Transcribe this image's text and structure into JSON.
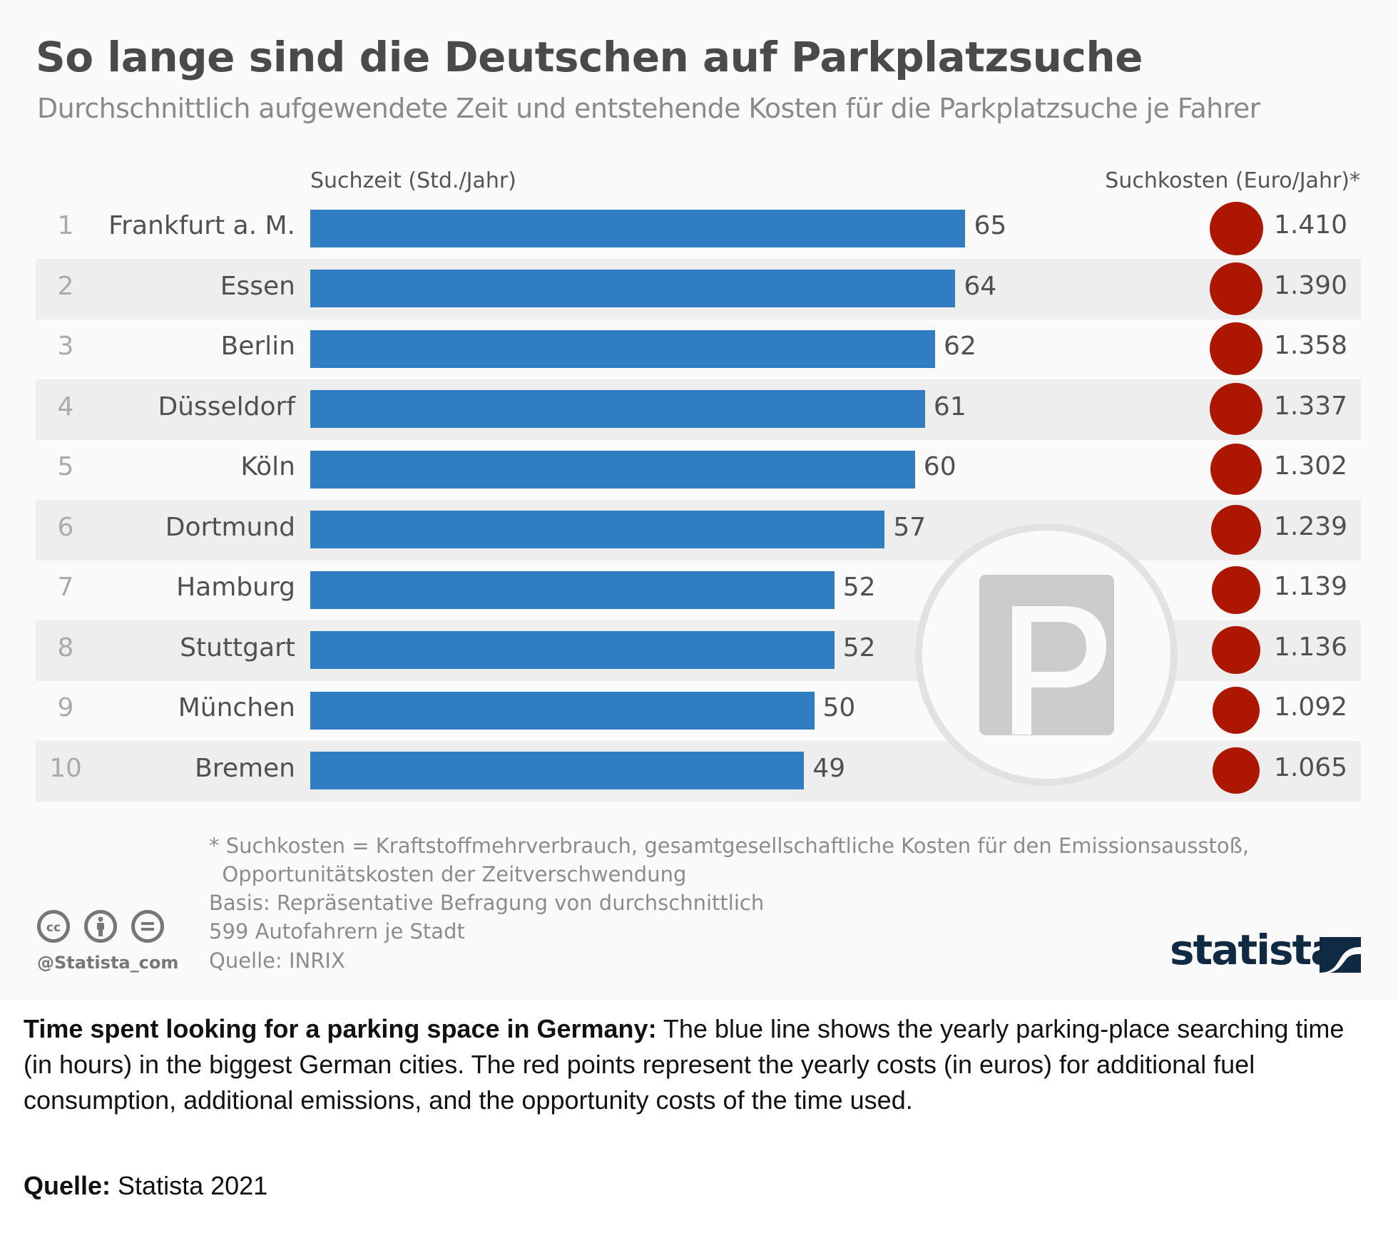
{
  "header": {
    "title": "So lange sind die Deutschen auf Parkplatzsuche",
    "subtitle": "Durchschnittlich aufgewendete Zeit und entstehende Kosten für die Parkplatzsuche je Fahrer"
  },
  "chart_data": {
    "type": "bar",
    "title": "So lange sind die Deutschen auf Parkplatzsuche",
    "subtitle": "Durchschnittlich aufgewendete Zeit und entstehende Kosten für die Parkplatzsuche je Fahrer",
    "orientation": "horizontal",
    "categories": [
      "Frankfurt a. M.",
      "Essen",
      "Berlin",
      "Düsseldorf",
      "Köln",
      "Dortmund",
      "Hamburg",
      "Stuttgart",
      "München",
      "Bremen"
    ],
    "ranks": [
      "1",
      "2",
      "3",
      "4",
      "5",
      "6",
      "7",
      "8",
      "9",
      "10"
    ],
    "series": [
      {
        "name": "Suchzeit (Std./Jahr)",
        "mark": "bar",
        "color": "#317dc2",
        "values": [
          65,
          64,
          62,
          61,
          60,
          57,
          52,
          52,
          50,
          49
        ],
        "labels": [
          "65",
          "64",
          "62",
          "61",
          "60",
          "57",
          "52",
          "52",
          "50",
          "49"
        ]
      },
      {
        "name": "Suchkosten (Euro/Jahr)*",
        "mark": "bubble",
        "color": "#ad1601",
        "values": [
          1410,
          1390,
          1358,
          1337,
          1302,
          1239,
          1139,
          1136,
          1092,
          1065
        ],
        "labels": [
          "1.410",
          "1.390",
          "1.358",
          "1.337",
          "1.302",
          "1.239",
          "1.139",
          "1.136",
          "1.092",
          "1.065"
        ]
      }
    ],
    "xlabel": "Suchzeit (Std./Jahr)",
    "ylabel": "",
    "xlim": [
      0,
      65
    ],
    "grid": false,
    "legend": "column headers above chart"
  },
  "columns": {
    "time_header": "Suchzeit (Std./Jahr)",
    "cost_header": "Suchkosten (Euro/Jahr)*"
  },
  "footnotes": {
    "text": "* Suchkosten = Kraftstoffmehrverbrauch, gesamtgesellschaftliche Kosten für den Emissionsausstoß,\n  Opportunitätskosten der Zeitverschwendung\nBasis: Repräsentative Befragung von durchschnittlich\n599 Autofahrern je Stadt",
    "source": "Quelle: INRIX"
  },
  "branding": {
    "handle": "@Statista_com",
    "logo_text": "statista",
    "license_icons": [
      "cc-icon",
      "attribution-icon",
      "no-derivatives-icon"
    ]
  },
  "caption": {
    "bold": "Time spent looking for a parking space in Germany:",
    "text": " The blue line shows the yearly parking-place searching time (in hours) in the biggest German cities. The red points represent the yearly costs (in euros) for additional fuel consumption, additional emissions, and the opportunity costs of the time used.",
    "source_label": "Quelle:",
    "source_value": " Statista 2021"
  },
  "colors": {
    "bar": "#317dc2",
    "bubble": "#ad1601",
    "stripe": "#eeeeee",
    "background": "#fafafa",
    "logo": "#0f2a42"
  }
}
